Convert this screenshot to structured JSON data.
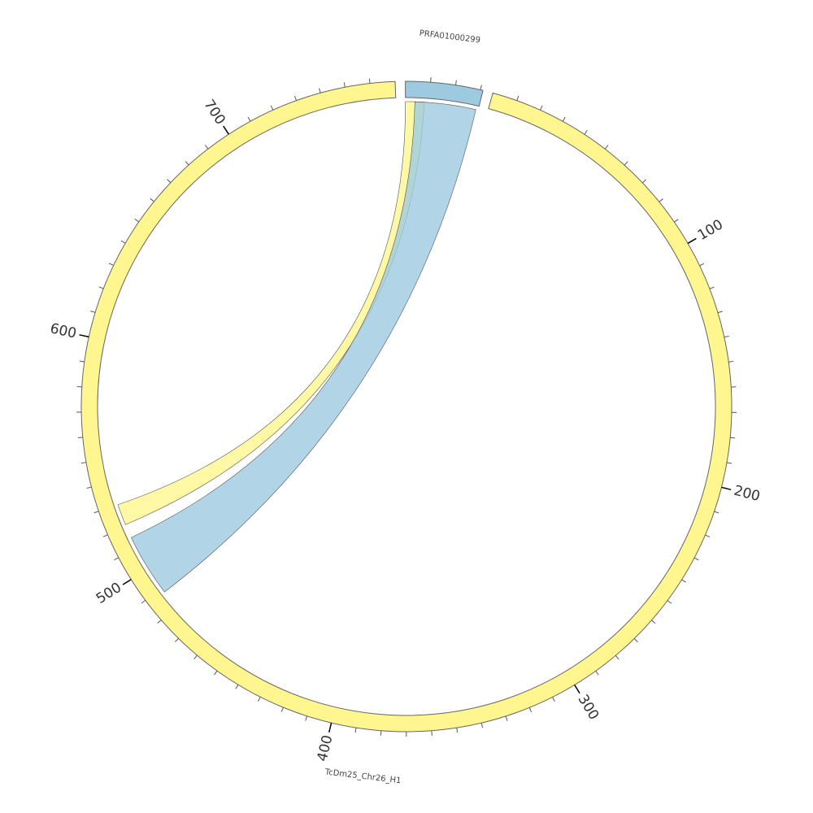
{
  "chart_data": {
    "type": "chord",
    "segments": [
      {
        "name": "PRFA01000299",
        "color": "#9ecae1",
        "length": 31
      },
      {
        "name": "TcDm25_Chr26_H1",
        "color": "#fff68f",
        "length": 770,
        "ticks": [
          100,
          200,
          300,
          400,
          500,
          600,
          700
        ]
      }
    ],
    "minor_tick_step": 10,
    "links": [
      {
        "source": {
          "segment": 0,
          "start": 0,
          "end": 8
        },
        "target": {
          "segment": 1,
          "start": 521,
          "end": 530
        },
        "color": "#fff68f"
      },
      {
        "source": {
          "segment": 0,
          "start": 4,
          "end": 30
        },
        "target": {
          "segment": 1,
          "start": 488,
          "end": 515
        },
        "color": "#9ecae1"
      }
    ]
  }
}
